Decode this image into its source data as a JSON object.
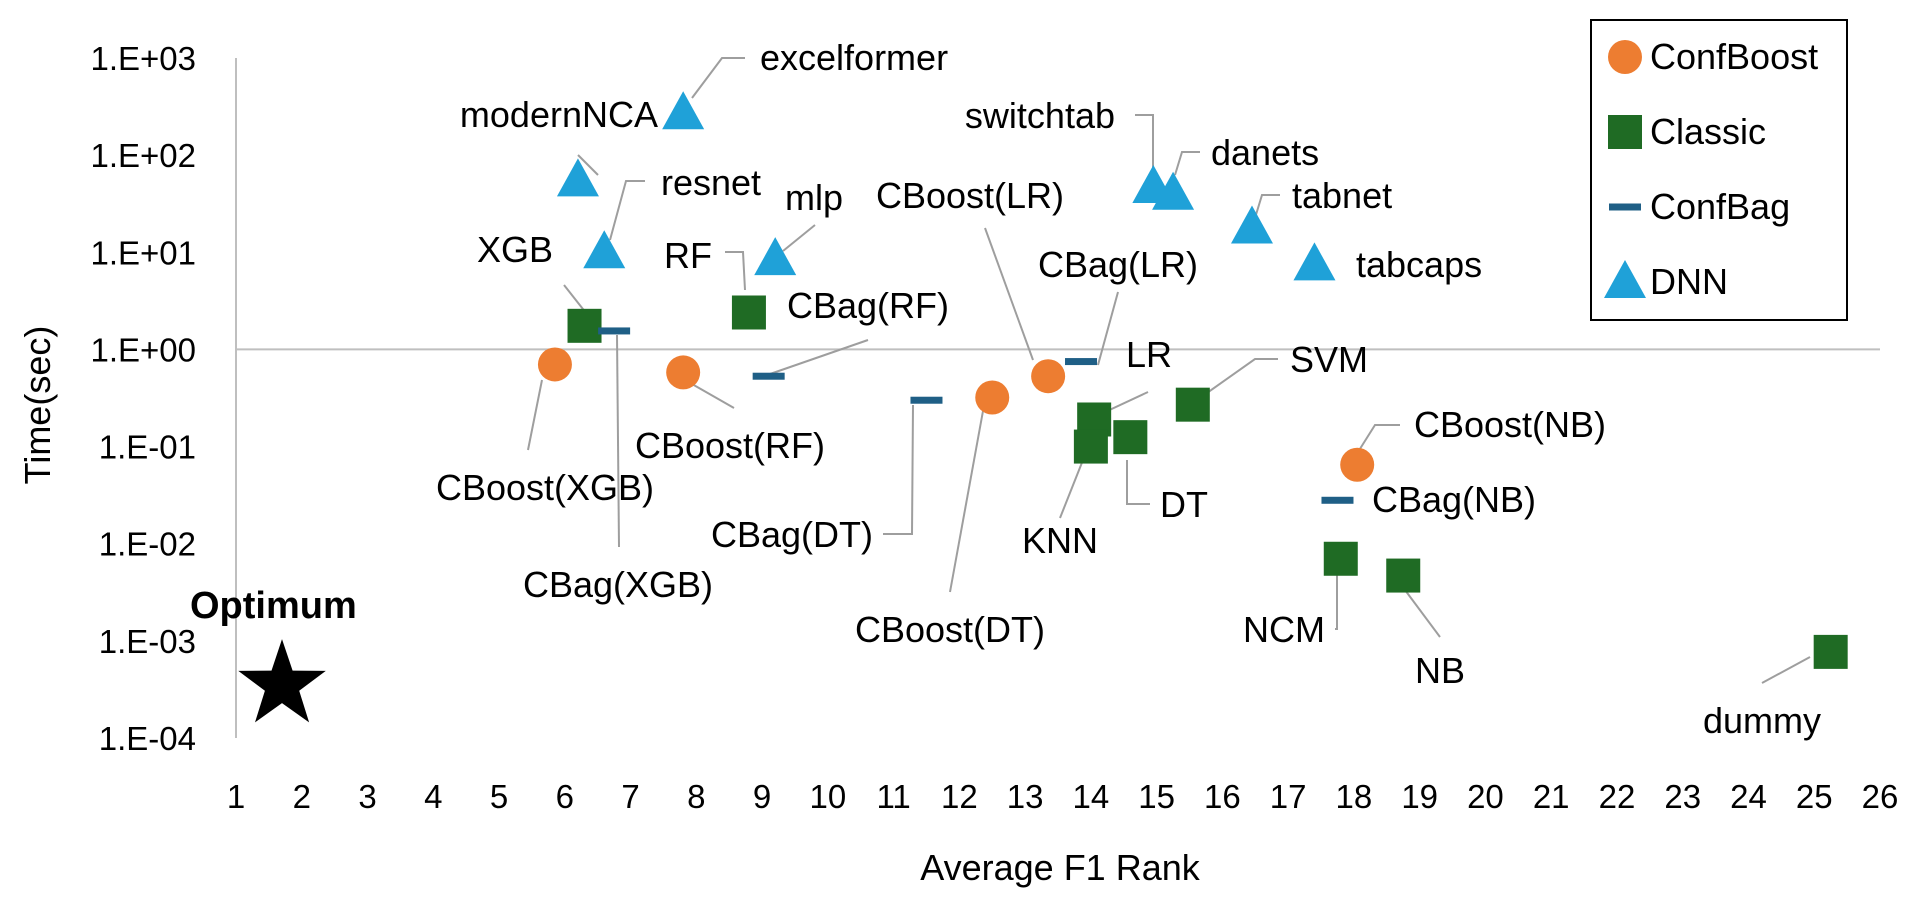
{
  "chart_data": {
    "type": "scatter",
    "xlabel": "Average F1 Rank",
    "ylabel": "Time(sec)",
    "xlim": [
      1,
      26
    ],
    "ylim": [
      0.0001,
      1000
    ],
    "yscale": "log",
    "x_ticks": [
      "1",
      "2",
      "3",
      "4",
      "5",
      "6",
      "7",
      "8",
      "9",
      "10",
      "11",
      "12",
      "13",
      "14",
      "15",
      "16",
      "17",
      "18",
      "19",
      "20",
      "21",
      "22",
      "23",
      "24",
      "25",
      "26"
    ],
    "y_ticks": [
      "1.E-04",
      "1.E-03",
      "1.E-02",
      "1.E-01",
      "1.E+00",
      "1.E+01",
      "1.E+02",
      "1.E+03"
    ],
    "reference_line_y": 1,
    "legend": {
      "position": "top-right",
      "entries": [
        "ConfBoost",
        "Classic",
        "ConfBag",
        "DNN"
      ]
    },
    "colors": {
      "ConfBoost": "#ED7D31",
      "Classic": "#1F6B24",
      "ConfBag": "#1F5F86",
      "DNN": "#1FA1D8"
    },
    "optimum": {
      "label": "Optimum",
      "x": 1.7,
      "y": 0.00035
    },
    "series": [
      {
        "name": "ConfBoost",
        "marker": "circle",
        "points": [
          {
            "label": "CBoost(XGB)",
            "x": 5.85,
            "y": 0.7
          },
          {
            "label": "CBoost(RF)",
            "x": 7.8,
            "y": 0.58
          },
          {
            "label": "CBoost(DT)",
            "x": 12.5,
            "y": 0.32
          },
          {
            "label": "CBoost(LR)",
            "x": 13.35,
            "y": 0.53
          },
          {
            "label": "CBoost(NB)",
            "x": 18.05,
            "y": 0.065
          }
        ]
      },
      {
        "name": "Classic",
        "marker": "square",
        "points": [
          {
            "label": "XGB",
            "x": 6.3,
            "y": 1.75
          },
          {
            "label": "RF",
            "x": 8.8,
            "y": 2.4
          },
          {
            "label": "LR",
            "x": 14.05,
            "y": 0.19
          },
          {
            "label": "KNN",
            "x": 14.0,
            "y": 0.1
          },
          {
            "label": "DT",
            "x": 14.6,
            "y": 0.125
          },
          {
            "label": "SVM",
            "x": 15.55,
            "y": 0.27
          },
          {
            "label": "NCM",
            "x": 17.8,
            "y": 0.007
          },
          {
            "label": "NB",
            "x": 18.75,
            "y": 0.0047
          },
          {
            "label": "dummy",
            "x": 25.25,
            "y": 0.00077
          }
        ]
      },
      {
        "name": "ConfBag",
        "marker": "dash",
        "points": [
          {
            "label": "CBag(XGB)",
            "x": 6.75,
            "y": 1.55
          },
          {
            "label": "CBag(RF)",
            "x": 9.1,
            "y": 0.53
          },
          {
            "label": "CBag(DT)",
            "x": 11.5,
            "y": 0.3
          },
          {
            "label": "CBag(LR)",
            "x": 13.85,
            "y": 0.75
          },
          {
            "label": "CBag(NB)",
            "x": 17.75,
            "y": 0.028
          }
        ]
      },
      {
        "name": "DNN",
        "marker": "triangle",
        "points": [
          {
            "label": "excelformer",
            "x": 7.8,
            "y": 270
          },
          {
            "label": "modernNCA",
            "x": 6.2,
            "y": 55
          },
          {
            "label": "resnet",
            "x": 6.6,
            "y": 10
          },
          {
            "label": "mlp",
            "x": 9.2,
            "y": 8.5
          },
          {
            "label": "switchtab",
            "x": 14.95,
            "y": 47
          },
          {
            "label": "danets",
            "x": 15.25,
            "y": 40
          },
          {
            "label": "tabnet",
            "x": 16.45,
            "y": 18
          },
          {
            "label": "tabcaps",
            "x": 17.4,
            "y": 7.5
          }
        ]
      }
    ]
  }
}
